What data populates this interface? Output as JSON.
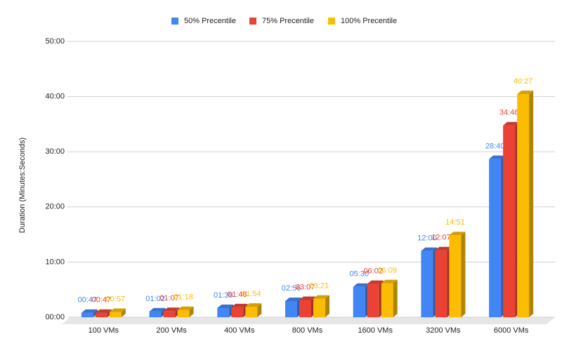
{
  "chart_data": {
    "type": "bar3d",
    "y_label": "Duration (Minutes:Seconds)",
    "categories": [
      "100 VMs",
      "200 VMs",
      "400 VMs",
      "800 VMs",
      "1600 VMs",
      "3200 VMs",
      "6000 VMs"
    ],
    "series": [
      {
        "name": "50% Precentile",
        "color": "#4285f4",
        "values": [
          47,
          62,
          99,
          176,
          330,
          720,
          1720
        ],
        "value_labels": [
          "00:47",
          "01:02",
          "01:39",
          "02:56",
          "05:30",
          "12:00",
          "28:40"
        ]
      },
      {
        "name": "75% Precentile",
        "color": "#ea4335",
        "values": [
          47,
          67,
          108,
          187,
          362,
          727,
          2086
        ],
        "value_labels": [
          "00:47",
          "01:07",
          "01:48",
          "03:07",
          "06:02",
          "12:07",
          "34:46"
        ]
      },
      {
        "name": "100% Precentile",
        "color": "#fbbc04",
        "values": [
          57,
          78,
          114,
          201,
          369,
          891,
          2427
        ],
        "value_labels": [
          "00:57",
          "01:18",
          "01:54",
          "03:21",
          "06:09",
          "14:51",
          "40:27"
        ]
      }
    ],
    "ylim": [
      0,
      3000
    ],
    "yticks": [
      {
        "value": 0,
        "label": "00:00"
      },
      {
        "value": 600,
        "label": "10:00"
      },
      {
        "value": 1200,
        "label": "20:00"
      },
      {
        "value": 1800,
        "label": "30:00"
      },
      {
        "value": 2400,
        "label": "40:00"
      },
      {
        "value": 3000,
        "label": "50:00"
      }
    ],
    "grid": true,
    "legend": "top"
  }
}
